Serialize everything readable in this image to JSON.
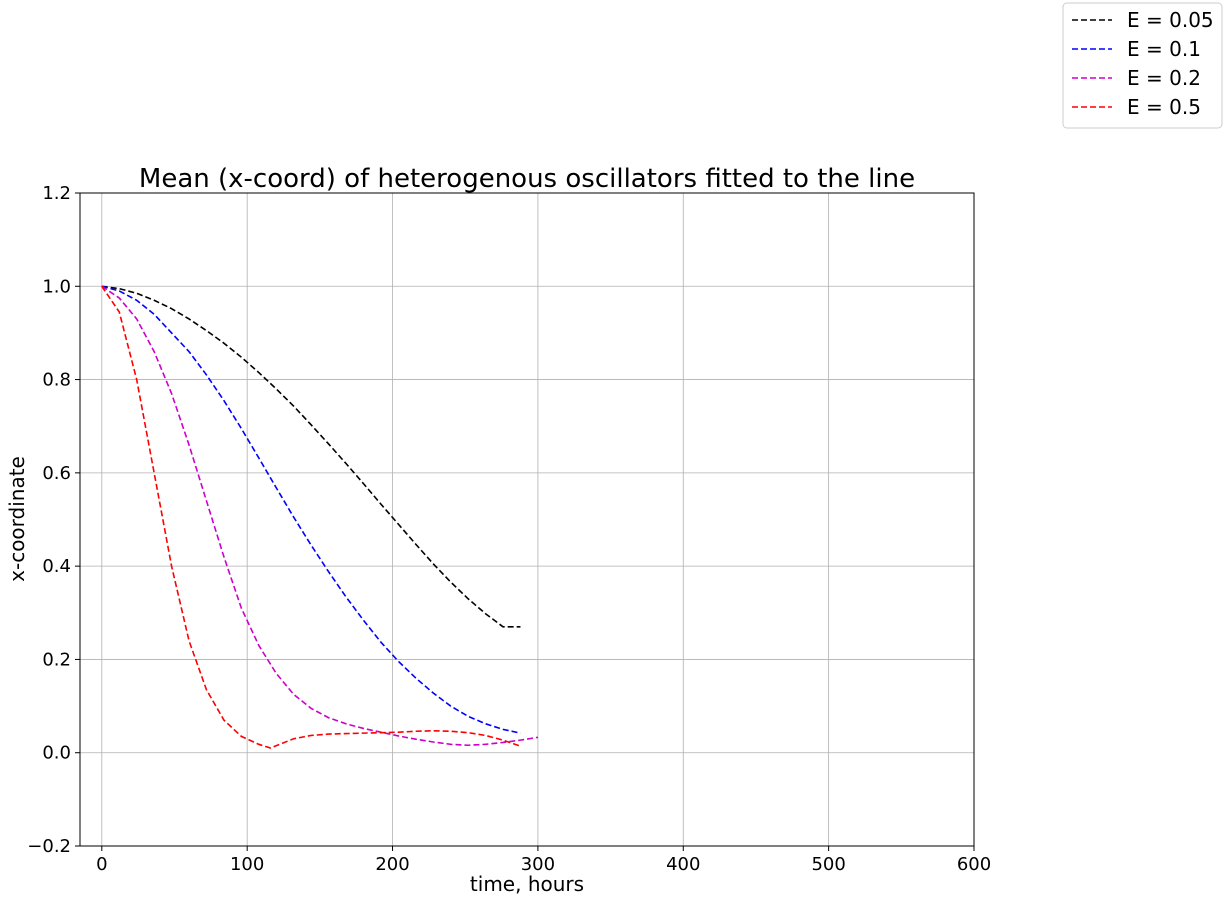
{
  "chart_data": {
    "type": "line",
    "title": "Mean (x-coord) of heterogenous oscillators fitted to the line",
    "xlabel": "time, hours",
    "ylabel": "x-coordinate",
    "xlim": [
      -15,
      600
    ],
    "ylim": [
      -0.2,
      1.2
    ],
    "xticks": [
      0,
      100,
      200,
      300,
      400,
      500,
      600
    ],
    "yticks": [
      -0.2,
      0.0,
      0.2,
      0.4,
      0.6,
      0.8,
      1.0,
      1.2
    ],
    "xtick_labels": [
      "0",
      "100",
      "200",
      "300",
      "400",
      "500",
      "600"
    ],
    "ytick_labels": [
      "−0.2",
      "0.0",
      "0.2",
      "0.4",
      "0.6",
      "0.8",
      "1.0",
      "1.2"
    ],
    "grid": true,
    "line_style": "dashed",
    "legend_position": "outside top-right",
    "series": [
      {
        "name": "E = 0.05",
        "color": "#000000",
        "x": [
          0,
          12,
          24,
          36,
          48,
          60,
          72,
          84,
          96,
          108,
          120,
          132,
          144,
          156,
          168,
          180,
          192,
          204,
          216,
          228,
          240,
          252,
          264,
          276,
          288
        ],
        "y": [
          1.0,
          0.995,
          0.985,
          0.97,
          0.952,
          0.93,
          0.905,
          0.878,
          0.848,
          0.815,
          0.78,
          0.743,
          0.703,
          0.662,
          0.62,
          0.577,
          0.533,
          0.49,
          0.447,
          0.405,
          0.366,
          0.33,
          0.298,
          0.27,
          0.27
        ]
      },
      {
        "name": "E = 0.1",
        "color": "#0000ff",
        "x": [
          0,
          12,
          24,
          36,
          48,
          60,
          72,
          84,
          96,
          108,
          120,
          132,
          144,
          156,
          168,
          180,
          192,
          204,
          216,
          228,
          240,
          252,
          264,
          276,
          288
        ],
        "y": [
          1.0,
          0.99,
          0.97,
          0.94,
          0.9,
          0.86,
          0.81,
          0.755,
          0.695,
          0.632,
          0.568,
          0.505,
          0.445,
          0.388,
          0.334,
          0.284,
          0.237,
          0.196,
          0.16,
          0.128,
          0.1,
          0.078,
          0.062,
          0.05,
          0.042
        ]
      },
      {
        "name": "E = 0.2",
        "color": "#cc00cc",
        "x": [
          0,
          12,
          24,
          36,
          48,
          60,
          72,
          84,
          96,
          108,
          120,
          132,
          144,
          156,
          168,
          180,
          192,
          204,
          216,
          228,
          240,
          252,
          264,
          276,
          288,
          300
        ],
        "y": [
          1.0,
          0.975,
          0.93,
          0.86,
          0.77,
          0.66,
          0.54,
          0.42,
          0.31,
          0.23,
          0.17,
          0.125,
          0.095,
          0.075,
          0.062,
          0.052,
          0.044,
          0.036,
          0.029,
          0.023,
          0.018,
          0.016,
          0.018,
          0.022,
          0.027,
          0.033
        ]
      },
      {
        "name": "E = 0.5",
        "color": "#ff0000",
        "x": [
          0,
          12,
          24,
          36,
          48,
          60,
          72,
          84,
          96,
          108,
          116,
          124,
          132,
          144,
          156,
          168,
          180,
          192,
          204,
          216,
          228,
          240,
          252,
          264,
          276,
          288
        ],
        "y": [
          1.0,
          0.945,
          0.8,
          0.6,
          0.4,
          0.24,
          0.135,
          0.07,
          0.035,
          0.018,
          0.01,
          0.02,
          0.03,
          0.037,
          0.04,
          0.041,
          0.042,
          0.043,
          0.044,
          0.046,
          0.047,
          0.046,
          0.043,
          0.037,
          0.027,
          0.014
        ]
      }
    ]
  }
}
